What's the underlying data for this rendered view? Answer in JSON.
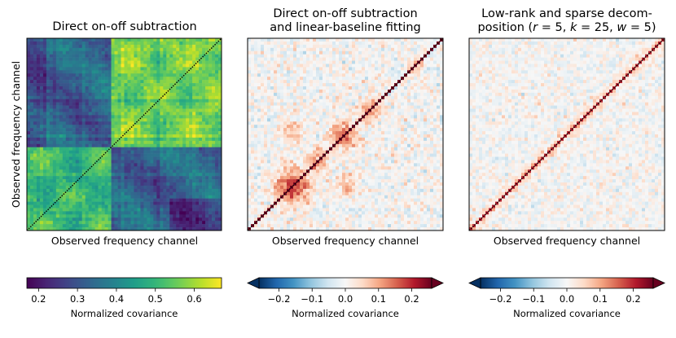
{
  "chart_data": [
    {
      "type": "heatmap",
      "title_lines": [
        "Direct on-off subtraction"
      ],
      "xlabel": "Observed frequency channel",
      "ylabel": "Observed frequency channel",
      "colormap": "viridis",
      "colorbar": {
        "label": "Normalized covariance",
        "range": [
          0.17,
          0.67
        ],
        "ticks": [
          0.2,
          0.3,
          0.4,
          0.5,
          0.6
        ],
        "tick_labels": [
          "0.2",
          "0.3",
          "0.4",
          "0.5",
          "0.6"
        ],
        "extend": "neither"
      },
      "diagonal": "dotted black line",
      "structure": "block structure: high covariance (0.5-0.65) in lower-left and upper-right blocks, low covariance (0.2-0.35) in off-diagonal blocks around channel boundary ~45%"
    },
    {
      "type": "heatmap",
      "title_lines": [
        "Direct on-off subtraction",
        "and linear-baseline fitting"
      ],
      "xlabel": "Observed frequency channel",
      "colormap": "RdBu_r",
      "colorbar": {
        "label": "Normalized covariance",
        "range": [
          -0.26,
          0.26
        ],
        "ticks": [
          -0.2,
          -0.1,
          0.0,
          0.1,
          0.2
        ],
        "tick_labels": [
          "−0.2",
          "−0.1",
          "0.0",
          "0.1",
          "0.2"
        ],
        "extend": "both"
      },
      "diagonal": "dotted black line",
      "structure": "noise-like with red blobs (0.1-0.2) clustered along the diagonal"
    },
    {
      "type": "heatmap",
      "title_lines": [
        "Low-rank and sparse decom-",
        "position (r = 5, k = 25, w = 5)"
      ],
      "xlabel": "Observed frequency channel",
      "colormap": "RdBu_r",
      "colorbar": {
        "label": "Normalized covariance",
        "range": [
          -0.26,
          0.26
        ],
        "ticks": [
          -0.2,
          -0.1,
          0.0,
          0.1,
          0.2
        ],
        "tick_labels": [
          "−0.2",
          "−0.1",
          "0.0",
          "0.1",
          "0.2"
        ],
        "extend": "both"
      },
      "diagonal": "dotted black line",
      "structure": "near-zero noise (-0.05 to 0.05) with faint red along diagonal"
    }
  ]
}
